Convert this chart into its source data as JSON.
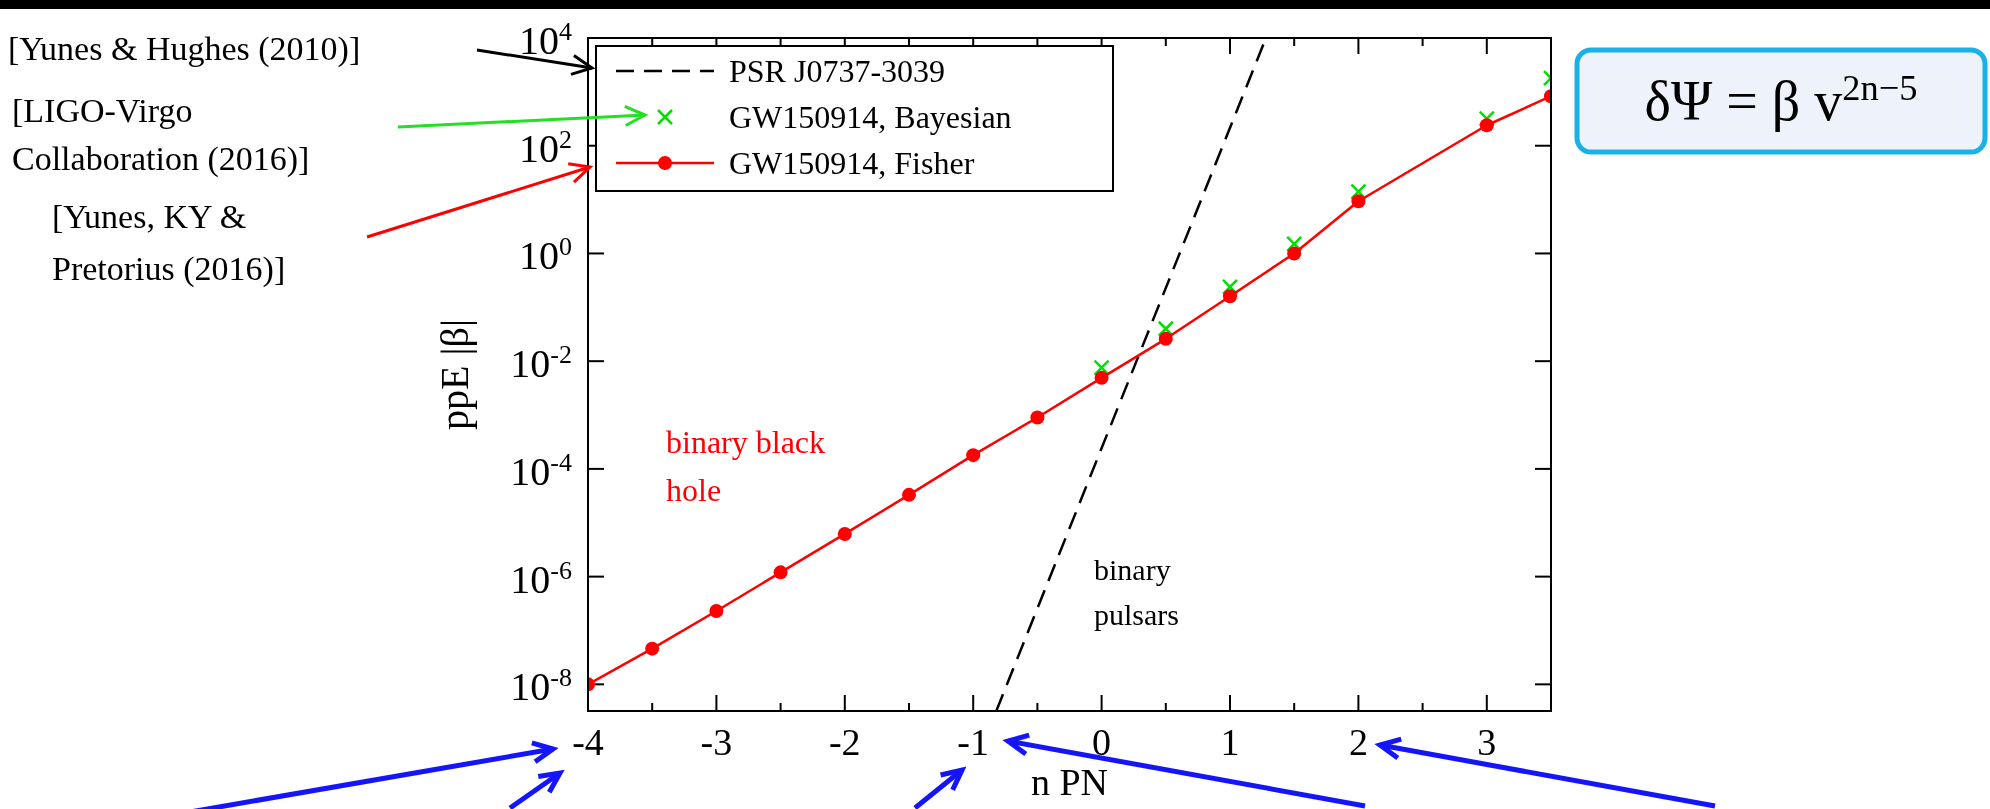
{
  "chart_data": {
    "type": "line",
    "xlabel": "n PN",
    "ylabel": "ppE |β|",
    "log": "y",
    "legend": "top left",
    "grid": false,
    "xlim": [
      -4,
      3.5
    ],
    "xticks": [
      -4,
      {
        "value": -3.5,
        "label": null
      },
      -3,
      {
        "value": -2.5,
        "label": null
      },
      -2,
      {
        "value": -1.5,
        "label": null
      },
      -1,
      {
        "value": -0.5,
        "label": null
      },
      0,
      {
        "value": 0.5,
        "label": null
      },
      1,
      {
        "value": 1.5,
        "label": null
      },
      2,
      {
        "value": 2.5,
        "label": null
      },
      3
    ],
    "ylim": [
      3.2e-09,
      10000
    ],
    "yticks": [
      {
        "value": 1e-08,
        "label": "10$^{-8}$"
      },
      {
        "value": 1e-06,
        "label": "10$^{-6}$"
      },
      {
        "value": 0.0001,
        "label": "10$^{-4}$"
      },
      {
        "value": 0.01,
        "label": "10$^{-2}$"
      },
      {
        "value": 1,
        "label": "10$^{0}$"
      },
      {
        "value": 100,
        "label": "10$^{2}$"
      },
      {
        "value": 10000,
        "label": "10$^{4}$"
      }
    ],
    "series": [
      {
        "name": "PSR J0737-3039",
        "type": "line",
        "color": "#000000",
        "line_style": "dashed",
        "marker": "none",
        "x": [
          -0.82,
          1.28
        ],
        "values": [
          3.2e-09,
          10000
        ]
      },
      {
        "name": "GW150914, Bayesian",
        "type": "scatter",
        "color": "#00e000",
        "marker": "cross",
        "x": [
          0,
          0.5,
          1,
          1.5,
          2,
          3,
          3.5
        ],
        "values": [
          0.0076,
          0.04,
          0.24,
          1.5,
          14,
          320,
          1800
        ]
      },
      {
        "name": "GW150914, Fisher",
        "color": "#ff0000",
        "line_style": "solid",
        "marker": "circle",
        "x": [
          -4,
          -3.5,
          -3,
          -2.5,
          -2,
          -1.5,
          -1,
          -0.5,
          0,
          0.5,
          1,
          1.5,
          2,
          3,
          3.5
        ],
        "values": [
          1e-08,
          4.6e-08,
          2.3e-07,
          1.2e-06,
          6.2e-06,
          3.3e-05,
          0.00018,
          0.0009,
          0.0049,
          0.026,
          0.16,
          1.0,
          9.3,
          240,
          830
        ]
      }
    ],
    "annotations": [
      "[Yunes & Hughes (2010)]",
      "[LIGO-Virgo\nCollaboration (2016)]",
      "[Yunes, KY &\nPretorius (2016)]",
      "binary black\nhole",
      "binary\npulsars",
      "δΨ = β v$^{2n−5}$"
    ]
  }
}
